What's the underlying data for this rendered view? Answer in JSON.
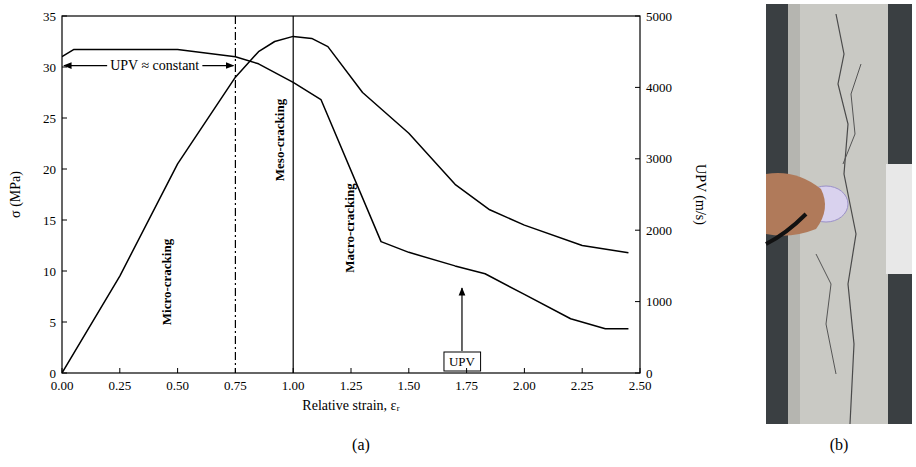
{
  "chart_data": {
    "type": "line",
    "xlabel": "Relative strain, εᵣ",
    "ylabel": "σ (MPa)",
    "y2label": "UPV (m/s)",
    "xlim": [
      0,
      2.5
    ],
    "xticks": [
      {
        "value": 0,
        "label": "0.00"
      },
      {
        "value": 0.25,
        "label": "0.25"
      },
      {
        "value": 0.5,
        "label": "0.50"
      },
      {
        "value": 0.75,
        "label": "0.75"
      },
      {
        "value": 1,
        "label": "1.00"
      },
      {
        "value": 1.25,
        "label": "1.25"
      },
      {
        "value": 1.5,
        "label": "1.50"
      },
      {
        "value": 1.75,
        "label": "1.75"
      },
      {
        "value": 2,
        "label": "2.00"
      },
      {
        "value": 2.25,
        "label": "2.25"
      },
      {
        "value": 2.5,
        "label": "2.50"
      }
    ],
    "ylim": [
      0,
      35
    ],
    "yticks": [
      0,
      5,
      10,
      15,
      20,
      25,
      30,
      35
    ],
    "y2lim": [
      0,
      5000
    ],
    "y2ticks": [
      0,
      1000,
      2000,
      3000,
      4000,
      5000
    ],
    "grid": false,
    "series": [
      {
        "color": "#000000",
        "line_style": "solid",
        "x": [
          0,
          0.25,
          0.5,
          0.75,
          0.85,
          0.92,
          1.0,
          1.08,
          1.15,
          1.3,
          1.5,
          1.7,
          1.85,
          2.0,
          2.25,
          2.45
        ],
        "values": [
          0,
          9.5,
          20.5,
          29,
          31.5,
          32.5,
          33,
          32.8,
          32,
          27.5,
          23.5,
          18.5,
          16,
          14.5,
          12.5,
          11.8
        ]
      },
      {
        "name": "UPV",
        "axis": "y2",
        "color": "#000000",
        "line_style": "solid",
        "label_x": 1.73,
        "x": [
          0,
          0.05,
          0.25,
          0.5,
          0.75,
          0.85,
          1.0,
          1.12,
          1.38,
          1.5,
          1.7,
          1.83,
          2.0,
          2.2,
          2.35,
          2.45
        ],
        "values": [
          4430,
          4530,
          4530,
          4530,
          4430,
          4330,
          4070,
          3830,
          1840,
          1690,
          1500,
          1390,
          1100,
          760,
          620,
          620
        ]
      }
    ],
    "vlines": [
      {
        "x": 0.75,
        "line_style": "dashdot"
      },
      {
        "x": 1.0,
        "line_style": "solid"
      }
    ],
    "annotations": [
      {
        "text": "UPV ≈ constant",
        "x": [
          0,
          0.75
        ]
      },
      {
        "text": "Micro-cracking",
        "x": 0.45
      },
      {
        "text": "Meso-cracking",
        "x": 0.94
      },
      {
        "text": "Macro-cracking",
        "x": 1.24
      }
    ]
  },
  "panel_labels": {
    "a": "(a)",
    "b": "(b)"
  }
}
